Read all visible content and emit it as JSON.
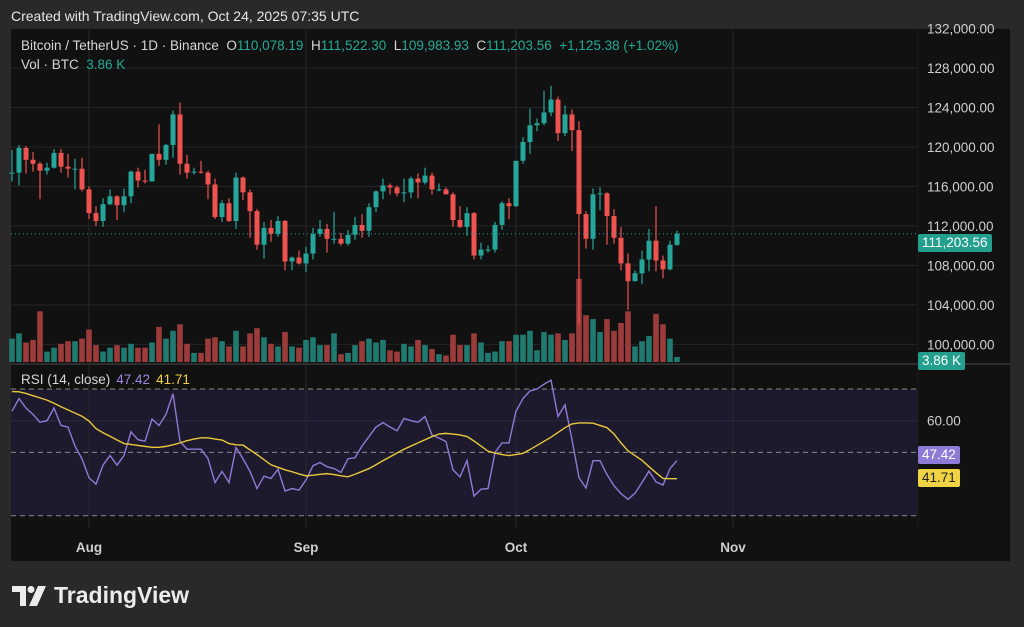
{
  "header": {
    "created": "Created with TradingView.com, Oct 24, 2025 07:35 UTC"
  },
  "legend": {
    "symbol": "Bitcoin / TetherUS · 1D · Binance",
    "o_label": "O",
    "o": "110,078.19",
    "h_label": "H",
    "h": "111,522.30",
    "l_label": "L",
    "l": "109,983.93",
    "c_label": "C",
    "c": "111,203.56",
    "change": "+1,125.38 (+1.02%)",
    "vol_label": "Vol · BTC",
    "vol": "3.86 K"
  },
  "rsi_legend": {
    "label": "RSI (14, close)",
    "rsi": "47.42",
    "ma": "41.71"
  },
  "tags": {
    "price": "111,203.56",
    "volume": "3.86 K",
    "rsi": "47.42",
    "rsi_ma": "41.71"
  },
  "logo": {
    "text": "TradingView"
  },
  "colors": {
    "up": "#26a69a",
    "down": "#ef5350",
    "vol_up": "#1f7a70",
    "vol_down": "#9b3c3b",
    "rsi": "#8f7ad6",
    "rsi_ma": "#e8c93a",
    "rsi_band": "#1e1a2e",
    "last_price": "#26a69a"
  },
  "chart_data": [
    {
      "type": "candlestick",
      "title": "Bitcoin / TetherUS · 1D · Binance",
      "ylim": [
        99000,
        132500
      ],
      "y_ticks": [
        100000,
        104000,
        108000,
        112000,
        116000,
        120000,
        124000,
        128000,
        132000
      ],
      "y_tick_labels": [
        "100,000.00",
        "104,000.00",
        "108,000.00",
        "112,000.00",
        "116,000.00",
        "120,000.00",
        "124,000.00",
        "128,000.00",
        "132,000.00"
      ],
      "x_ticks": [
        "2025-08-01",
        "2025-09-01",
        "2025-10-01",
        "2025-11-01"
      ],
      "x_tick_labels": [
        "Aug",
        "Sep",
        "Oct",
        "Nov"
      ],
      "last_price": 111203.56,
      "volume_unit": "K BTC",
      "start_date": "2025-07-21",
      "open": [
        117.3,
        117.4,
        119.9,
        118.7,
        118.3,
        117.6,
        117.9,
        119.4,
        118.0,
        117.8,
        117.8,
        115.7,
        113.3,
        112.5,
        114.2,
        115.0,
        114.1,
        115.0,
        117.5,
        116.6,
        116.5,
        119.3,
        118.7,
        120.2,
        123.3,
        118.3,
        117.4,
        117.5,
        117.4,
        116.2,
        112.9,
        114.3,
        112.5,
        116.9,
        115.4,
        113.5,
        110.1,
        111.8,
        111.2,
        112.5,
        108.4,
        108.8,
        108.2,
        109.2,
        111.2,
        111.7,
        110.7,
        110.7,
        110.2,
        111.1,
        112.1,
        111.5,
        113.9,
        115.5,
        116.1,
        115.9,
        115.3,
        115.4,
        116.8,
        116.4,
        117.1,
        115.7,
        115.7,
        115.2,
        112.6,
        111.9,
        113.3,
        109.0,
        109.6,
        109.6,
        112.1,
        114.3,
        114.0,
        118.6,
        120.5,
        122.2,
        122.4,
        123.5,
        124.8,
        121.4,
        123.3,
        121.7,
        113.2,
        110.7,
        115.2,
        115.3,
        113.0,
        110.8,
        108.2,
        106.4,
        107.2,
        108.6,
        110.5,
        108.5,
        107.6,
        110.08
      ],
      "high": [
        119.7,
        120.2,
        120.1,
        119.5,
        118.5,
        118.4,
        119.8,
        119.8,
        119.3,
        118.8,
        118.9,
        116.0,
        114.0,
        114.8,
        115.7,
        115.1,
        115.8,
        117.6,
        117.9,
        117.7,
        119.3,
        122.3,
        120.3,
        123.7,
        124.5,
        119.2,
        117.9,
        118.6,
        117.6,
        116.8,
        114.6,
        114.8,
        117.4,
        117.0,
        115.7,
        113.7,
        112.4,
        112.6,
        113.0,
        112.6,
        108.9,
        109.5,
        109.9,
        111.8,
        112.6,
        112.2,
        113.4,
        111.3,
        111.6,
        112.9,
        113.2,
        114.3,
        115.6,
        116.8,
        116.3,
        116.1,
        116.8,
        117.0,
        117.3,
        117.9,
        117.4,
        116.3,
        115.9,
        115.4,
        114.0,
        113.9,
        113.4,
        110.3,
        110.0,
        112.4,
        114.5,
        114.8,
        118.6,
        121.0,
        123.9,
        122.9,
        125.7,
        126.2,
        125.1,
        124.2,
        123.8,
        122.6,
        113.5,
        115.8,
        115.9,
        115.4,
        113.7,
        111.9,
        109.2,
        107.5,
        109.5,
        111.7,
        114.0,
        109.0,
        110.5,
        111.52
      ],
      "low": [
        116.5,
        116.1,
        117.3,
        117.5,
        114.7,
        117.2,
        117.8,
        117.4,
        116.9,
        115.7,
        115.5,
        112.7,
        112.0,
        111.9,
        114.1,
        112.6,
        113.4,
        114.3,
        115.9,
        116.3,
        116.5,
        118.1,
        118.2,
        118.9,
        117.2,
        116.8,
        117.2,
        117.3,
        114.7,
        112.7,
        112.4,
        112.4,
        111.7,
        114.6,
        110.8,
        109.6,
        108.7,
        110.4,
        110.9,
        107.5,
        107.5,
        108.1,
        107.3,
        108.6,
        110.9,
        109.3,
        110.2,
        110.0,
        110.0,
        110.6,
        110.8,
        110.9,
        113.4,
        114.7,
        115.2,
        115.0,
        114.4,
        114.8,
        114.8,
        116.2,
        115.2,
        115.5,
        115.2,
        111.9,
        111.8,
        111.0,
        108.6,
        108.6,
        109.3,
        109.3,
        111.6,
        112.7,
        113.9,
        118.3,
        119.3,
        121.6,
        122.2,
        123.1,
        120.6,
        121.1,
        119.6,
        102.0,
        109.7,
        109.6,
        113.6,
        110.1,
        110.2,
        107.5,
        103.5,
        106.4,
        106.1,
        107.4,
        107.4,
        106.7,
        107.5,
        109.98
      ],
      "close": [
        117.4,
        119.9,
        118.7,
        118.3,
        117.6,
        117.9,
        119.4,
        118.0,
        117.8,
        117.8,
        115.7,
        113.3,
        112.5,
        114.2,
        115.0,
        114.1,
        115.0,
        117.5,
        116.6,
        116.5,
        119.3,
        118.7,
        120.2,
        123.3,
        118.3,
        117.4,
        117.5,
        117.4,
        116.2,
        112.9,
        114.3,
        112.5,
        116.9,
        115.4,
        113.5,
        110.1,
        111.8,
        111.2,
        112.5,
        108.4,
        108.8,
        108.2,
        109.2,
        111.2,
        111.7,
        110.7,
        110.7,
        110.2,
        111.1,
        112.1,
        111.5,
        113.9,
        115.5,
        116.1,
        115.9,
        115.3,
        115.4,
        116.8,
        116.4,
        117.1,
        115.7,
        115.7,
        115.2,
        112.6,
        111.9,
        113.3,
        109.0,
        109.6,
        109.6,
        112.1,
        114.3,
        114.0,
        118.6,
        120.5,
        122.2,
        122.4,
        123.5,
        124.8,
        121.4,
        123.3,
        121.7,
        113.2,
        110.7,
        115.2,
        115.3,
        113.0,
        110.8,
        108.2,
        106.4,
        107.2,
        108.6,
        110.5,
        108.5,
        107.6,
        110.1,
        111.20356
      ],
      "price_unit_multiplier": 1000,
      "volume": [
        18,
        22,
        15,
        17,
        39,
        8,
        11,
        14,
        16,
        16,
        18,
        25,
        13,
        8,
        11,
        13,
        11,
        14,
        11,
        11,
        15,
        27,
        18,
        24,
        29,
        14,
        7,
        7,
        18,
        19,
        16,
        12,
        24,
        12,
        22,
        26,
        19,
        14,
        12,
        23,
        12,
        11,
        17,
        19,
        13,
        13,
        22,
        6,
        7,
        13,
        16,
        18,
        15,
        17,
        9,
        8,
        14,
        12,
        17,
        13,
        10,
        6,
        5,
        21,
        13,
        13,
        22,
        15,
        7,
        8,
        16,
        16,
        21,
        21,
        24,
        9,
        23,
        21,
        22,
        17,
        22,
        64,
        36,
        33,
        23,
        33,
        24,
        30,
        39,
        12,
        16,
        20,
        37,
        29,
        18,
        3.86
      ]
    },
    {
      "type": "line",
      "title": "RSI (14, close)",
      "ylim": [
        25,
        75
      ],
      "y_ticks": [
        60
      ],
      "y_tick_labels": [
        "60.00"
      ],
      "bands": [
        70,
        50,
        30
      ],
      "series": [
        {
          "name": "RSI",
          "values": [
            63,
            67,
            64,
            62,
            59.5,
            60,
            64,
            58.5,
            58,
            52,
            48,
            42,
            40,
            46,
            49,
            46,
            49,
            56.5,
            54,
            53.5,
            60.5,
            58.5,
            62,
            68.5,
            53.5,
            51,
            51,
            51,
            48,
            40.5,
            44,
            40.5,
            51.5,
            48,
            44,
            38.6,
            42.5,
            41.8,
            44.7,
            37.8,
            38.6,
            38.1,
            41.3,
            45.8,
            46.8,
            45.5,
            44.9,
            43.7,
            48,
            48.3,
            52,
            55,
            58,
            59.4,
            58,
            56.8,
            60.7,
            60,
            59.5,
            61.3,
            55.5,
            54.5,
            53.4,
            44.5,
            42.3,
            47.4,
            36.2,
            38.4,
            38.6,
            50,
            53,
            53,
            63,
            67,
            69.4,
            70,
            71.5,
            72.8,
            61.3,
            65,
            54,
            42,
            38.8,
            47.4,
            47.4,
            43,
            39.5,
            37,
            35.2,
            37.1,
            40.5,
            44.1,
            40.7,
            39.7,
            44.9,
            47.42
          ]
        },
        {
          "name": "RSI-based MA",
          "values": [
            69.2,
            69.1,
            68.6,
            67.9,
            67.2,
            66.5,
            65.5,
            64.4,
            63.4,
            62.4,
            61.4,
            59.9,
            57.5,
            56.2,
            55.1,
            53.9,
            52.8,
            52.5,
            52.2,
            51.9,
            51.6,
            51.6,
            51.9,
            52.4,
            53,
            53.7,
            54.2,
            54.6,
            54.6,
            54.2,
            53.9,
            52.8,
            52.4,
            52.3,
            50.8,
            49.3,
            47.7,
            46.1,
            45.3,
            44.5,
            43.9,
            43.2,
            42.6,
            42.8,
            43.1,
            43.3,
            43,
            42.6,
            42.3,
            43.1,
            44,
            44.9,
            46.1,
            47.4,
            48.6,
            49.8,
            51,
            52,
            53,
            54,
            55,
            55.8,
            56,
            55.8,
            55.5,
            55,
            53.6,
            52,
            50.4,
            49.8,
            49.3,
            49,
            49.3,
            49.7,
            50.9,
            52.2,
            53.5,
            54.8,
            56.3,
            57.8,
            59,
            59.3,
            59.3,
            59.2,
            58.5,
            57.8,
            55.8,
            53,
            50.5,
            49,
            47.5,
            45.5,
            43.6,
            41.8,
            41.7,
            41.71
          ]
        }
      ]
    }
  ]
}
